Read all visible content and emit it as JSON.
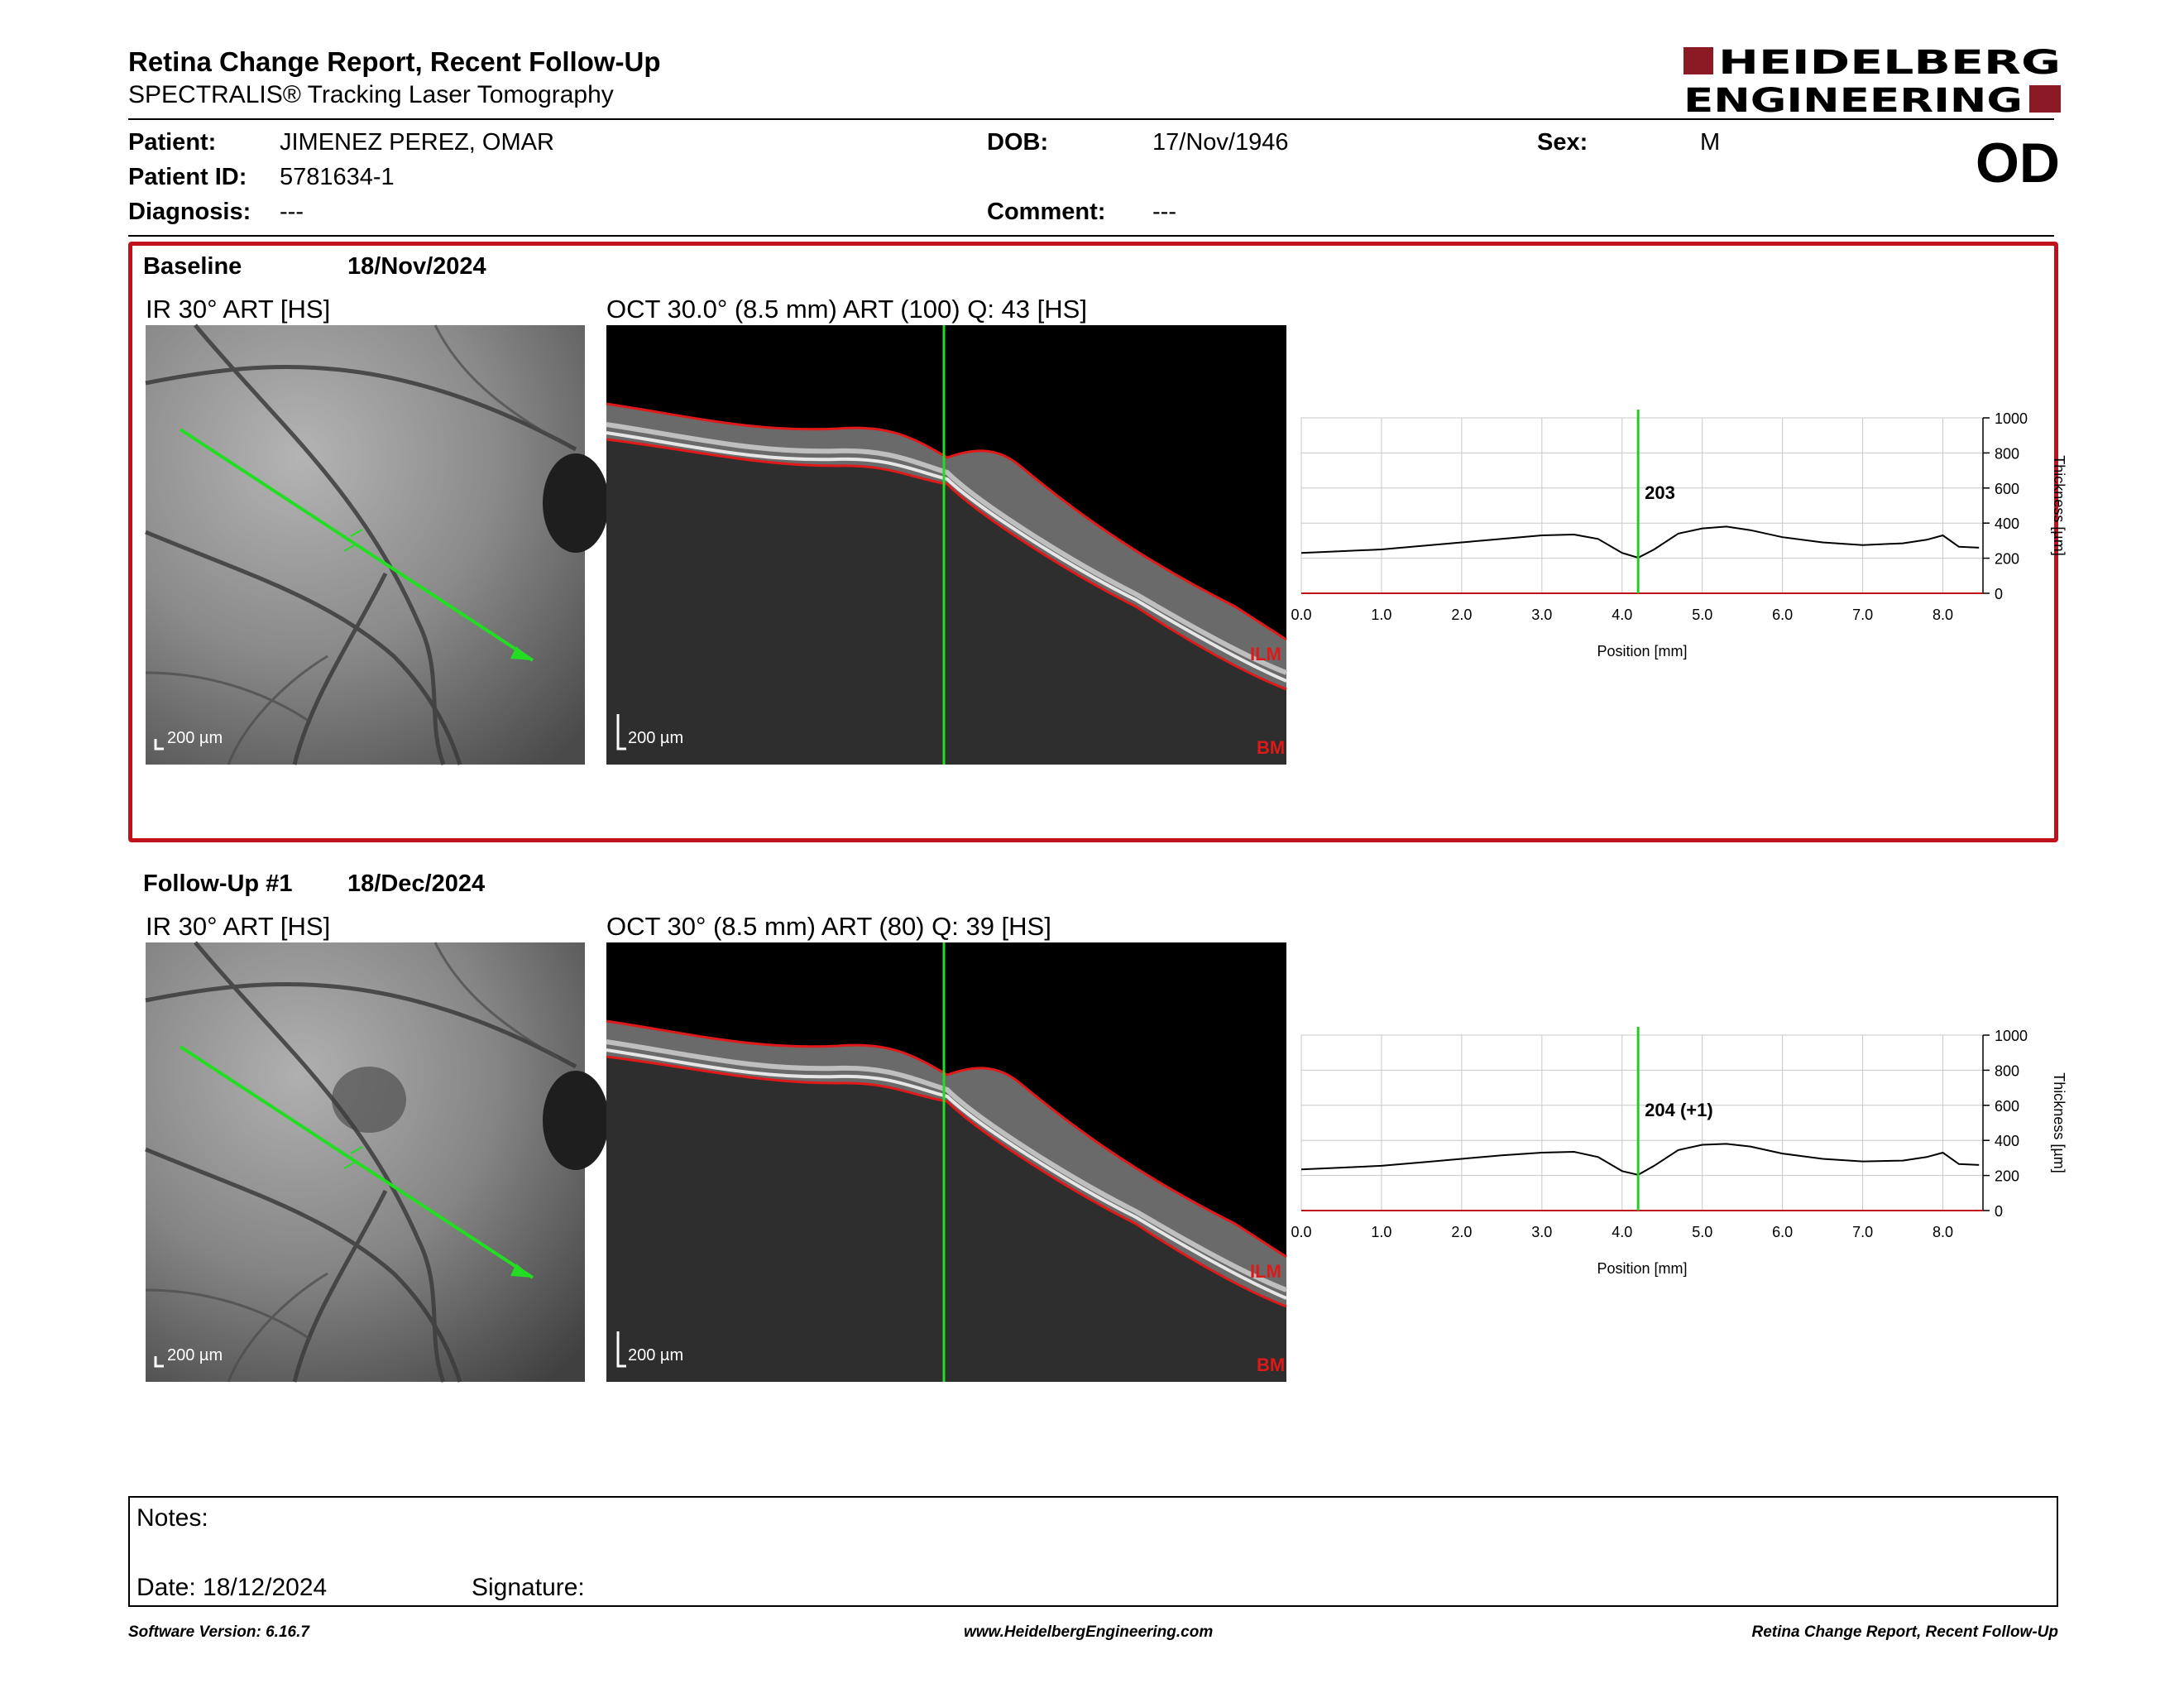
{
  "header": {
    "title": "Retina Change Report, Recent Follow-Up",
    "subtitle": "SPECTRALIS® Tracking Laser Tomography",
    "logo_line1": "HEIDELBERG",
    "logo_line2": "ENGINEERING",
    "eye": "OD"
  },
  "patient": {
    "patient_label": "Patient:",
    "patient_value": "JIMENEZ PEREZ, OMAR",
    "id_label": "Patient ID:",
    "id_value": "5781634-1",
    "diagnosis_label": "Diagnosis:",
    "diagnosis_value": "---",
    "dob_label": "DOB:",
    "dob_value": "17/Nov/1946",
    "comment_label": "Comment:",
    "comment_value": "---",
    "sex_label": "Sex:",
    "sex_value": "M"
  },
  "visits": [
    {
      "label": "Baseline",
      "date": "18/Nov/2024",
      "ir_title": "IR 30° ART [HS]",
      "oct_title": "OCT 30.0° (8.5 mm) ART (100) Q: 43 [HS]",
      "scale_label": "200 µm",
      "ilm_label": "ILM",
      "bm_label": "BM",
      "thickness_value": "203"
    },
    {
      "label": "Follow-Up #1",
      "date": "18/Dec/2024",
      "ir_title": "IR 30° ART [HS]",
      "oct_title": "OCT 30° (8.5 mm) ART (80) Q: 39 [HS]",
      "scale_label": "200 µm",
      "ilm_label": "ILM",
      "bm_label": "BM",
      "thickness_value": "204 (+1)"
    }
  ],
  "chart_data": [
    {
      "type": "line",
      "xlabel": "Position [mm]",
      "ylabel": "Thickness [µm]",
      "xlim": [
        0,
        8.5
      ],
      "ylim": [
        0,
        1000
      ],
      "x_ticks": [
        "0.0",
        "1.0",
        "2.0",
        "3.0",
        "4.0",
        "5.0",
        "6.0",
        "7.0",
        "8.0"
      ],
      "y_ticks": [
        "0",
        "200",
        "400",
        "600",
        "800",
        "1000"
      ],
      "grid": true,
      "marker_position": 4.2,
      "marker_label": "203",
      "series": [
        {
          "x": [
            0,
            0.5,
            1.0,
            1.5,
            2.0,
            2.5,
            3.0,
            3.4,
            3.7,
            4.0,
            4.2,
            4.4,
            4.7,
            5.0,
            5.3,
            5.6,
            6.0,
            6.5,
            7.0,
            7.5,
            7.8,
            8.0,
            8.2,
            8.45
          ],
          "y": [
            230,
            240,
            250,
            270,
            290,
            310,
            330,
            335,
            310,
            230,
            203,
            250,
            340,
            370,
            380,
            360,
            320,
            290,
            275,
            285,
            305,
            330,
            265,
            260
          ]
        }
      ],
      "color": "#000000",
      "marker_color": "#22cc22"
    },
    {
      "type": "line",
      "xlabel": "Position [mm]",
      "ylabel": "Thickness [µm]",
      "xlim": [
        0,
        8.5
      ],
      "ylim": [
        0,
        1000
      ],
      "x_ticks": [
        "0.0",
        "1.0",
        "2.0",
        "3.0",
        "4.0",
        "5.0",
        "6.0",
        "7.0",
        "8.0"
      ],
      "y_ticks": [
        "0",
        "200",
        "400",
        "600",
        "800",
        "1000"
      ],
      "grid": true,
      "marker_position": 4.2,
      "marker_label": "204 (+1)",
      "series": [
        {
          "x": [
            0,
            0.5,
            1.0,
            1.5,
            2.0,
            2.5,
            3.0,
            3.4,
            3.7,
            4.0,
            4.2,
            4.4,
            4.7,
            5.0,
            5.3,
            5.6,
            6.0,
            6.5,
            7.0,
            7.5,
            7.8,
            8.0,
            8.2,
            8.45
          ],
          "y": [
            235,
            245,
            255,
            275,
            295,
            315,
            330,
            335,
            305,
            225,
            204,
            255,
            345,
            375,
            380,
            365,
            325,
            295,
            280,
            285,
            305,
            330,
            265,
            260
          ]
        }
      ],
      "color": "#000000",
      "marker_color": "#22cc22"
    }
  ],
  "notes": {
    "notes_label": "Notes:",
    "date_label": "Date: 18/12/2024",
    "signature_label": "Signature:"
  },
  "footer": {
    "software": "Software Version: 6.16.7",
    "website": "www.HeidelbergEngineering.com",
    "report": "Retina Change Report, Recent Follow-Up"
  },
  "colors": {
    "accent_red": "#c1121b",
    "scan_line_green": "#22cc22"
  }
}
